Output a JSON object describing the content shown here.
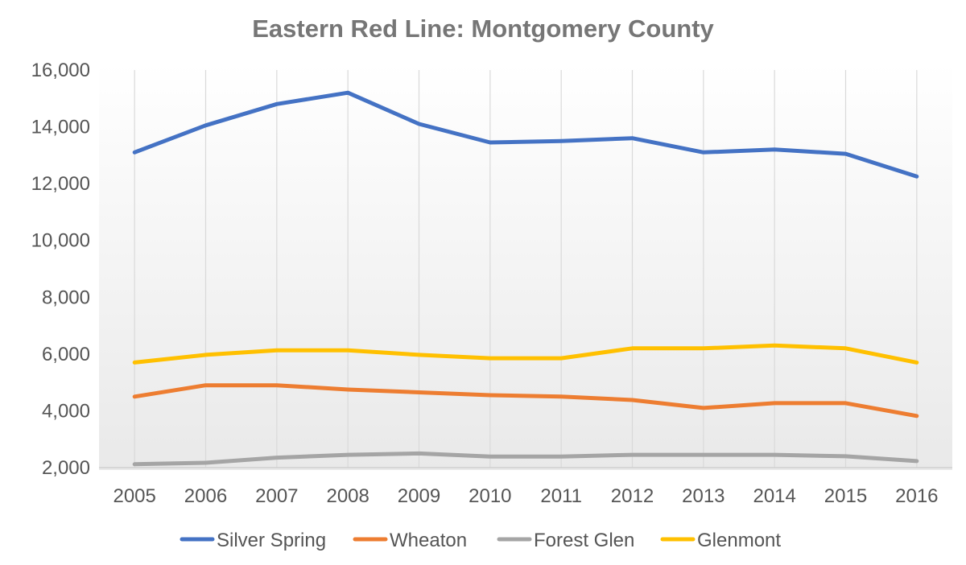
{
  "chart_data": {
    "type": "line",
    "title": "Eastern Red Line: Montgomery County",
    "xlabel": "",
    "ylabel": "",
    "categories": [
      "2005",
      "2006",
      "2007",
      "2008",
      "2009",
      "2010",
      "2011",
      "2012",
      "2013",
      "2014",
      "2015",
      "2016"
    ],
    "ylim": [
      2000,
      16000
    ],
    "yticks": [
      "2,000",
      "4,000",
      "6,000",
      "8,000",
      "10,000",
      "12,000",
      "14,000",
      "16,000"
    ],
    "grid": "vertical",
    "legend_position": "bottom",
    "series": [
      {
        "name": "Silver Spring",
        "color": "#4472C4",
        "values": [
          13100,
          14050,
          14800,
          15200,
          14100,
          13450,
          13500,
          13600,
          13100,
          13200,
          13050,
          12250
        ]
      },
      {
        "name": "Wheaton",
        "color": "#ED7D31",
        "values": [
          4500,
          4900,
          4900,
          4750,
          4650,
          4550,
          4500,
          4380,
          4100,
          4270,
          4270,
          3820
        ]
      },
      {
        "name": "Forest Glen",
        "color": "#A5A5A5",
        "values": [
          2120,
          2170,
          2350,
          2450,
          2500,
          2390,
          2390,
          2450,
          2450,
          2450,
          2400,
          2230
        ]
      },
      {
        "name": "Glenmont",
        "color": "#FFC000",
        "values": [
          5700,
          5970,
          6130,
          6130,
          5970,
          5850,
          5850,
          6200,
          6200,
          6300,
          6200,
          5700
        ]
      }
    ]
  }
}
